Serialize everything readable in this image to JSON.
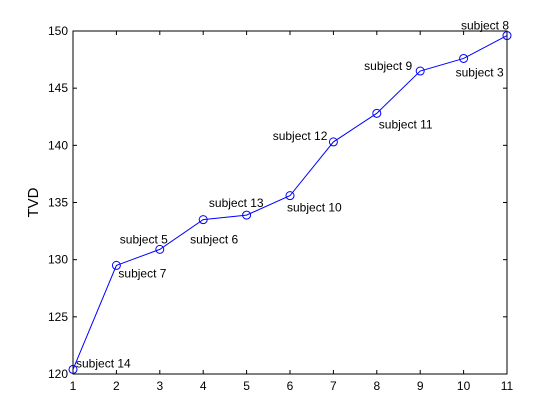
{
  "chart_data": {
    "type": "line",
    "title": "",
    "xlabel": "",
    "ylabel": "TVD",
    "xlim": [
      1,
      11
    ],
    "ylim": [
      120,
      150
    ],
    "xticks": [
      1,
      2,
      3,
      4,
      5,
      6,
      7,
      8,
      9,
      10,
      11
    ],
    "yticks": [
      120,
      125,
      130,
      135,
      140,
      145,
      150
    ],
    "grid": false,
    "line_color": "#0000ff",
    "marker": "circle",
    "x": [
      1,
      2,
      3,
      4,
      5,
      6,
      7,
      8,
      9,
      10,
      11
    ],
    "y": [
      120.4,
      129.5,
      130.9,
      133.5,
      133.9,
      135.6,
      140.3,
      142.8,
      146.5,
      147.6,
      149.6
    ],
    "point_labels": [
      "subject 14",
      "subject 7",
      "subject 5",
      "subject 6",
      "subject 13",
      "subject 10",
      "subject 12",
      "subject 11",
      "subject 9",
      "subject 3",
      "subject 8"
    ]
  }
}
